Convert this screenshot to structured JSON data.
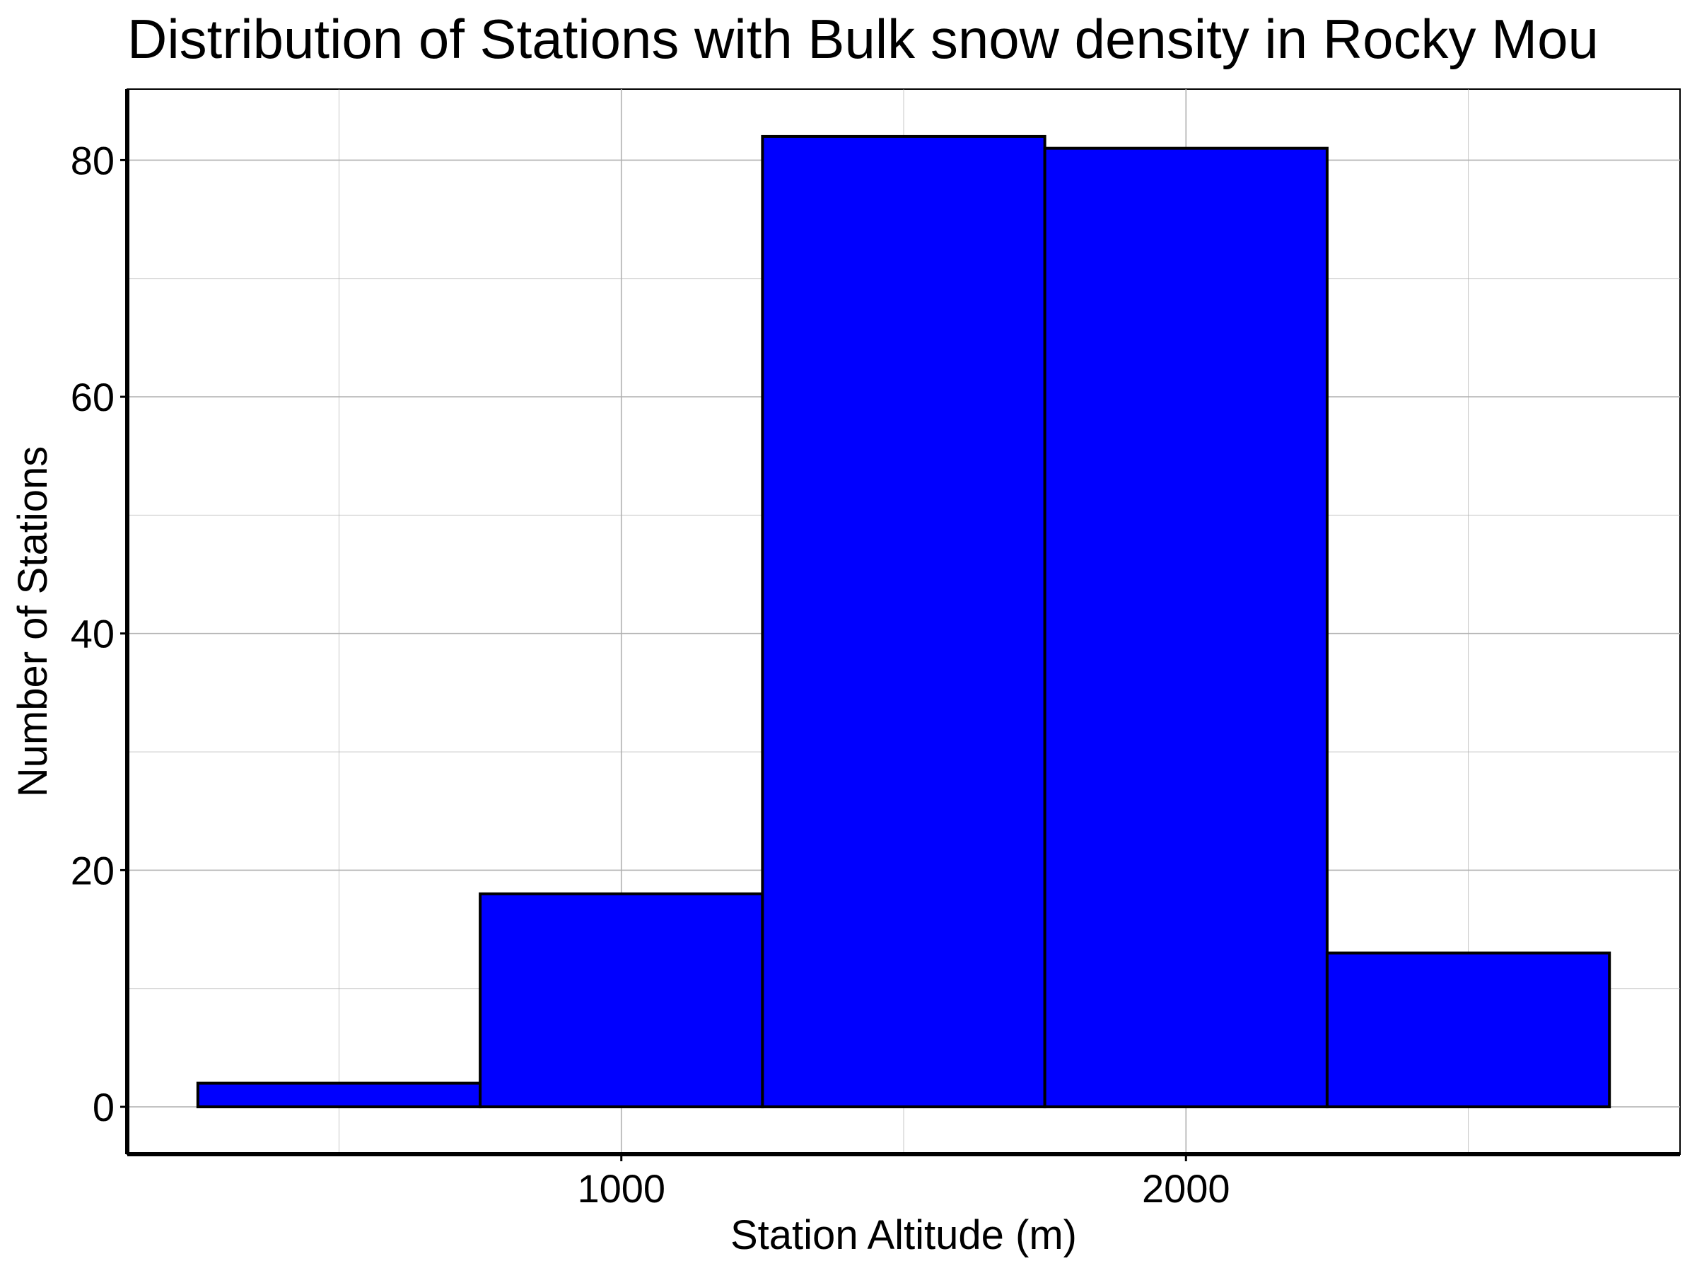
{
  "chart_data": {
    "type": "bar",
    "title": "Distribution of Stations with Bulk snow density in Rocky Mou",
    "xlabel": "Station Altitude (m)",
    "ylabel": "Number of Stations",
    "bins": [
      {
        "x0": 250,
        "x1": 750,
        "count": 2
      },
      {
        "x0": 750,
        "x1": 1250,
        "count": 18
      },
      {
        "x0": 1250,
        "x1": 1750,
        "count": 82
      },
      {
        "x0": 1750,
        "x1": 2250,
        "count": 81
      },
      {
        "x0": 2250,
        "x1": 2750,
        "count": 13
      }
    ],
    "xticks": [
      1000,
      2000
    ],
    "yticks": [
      0,
      20,
      40,
      60,
      80
    ],
    "xlim": [
      125,
      2875
    ],
    "ylim": [
      -4,
      86
    ],
    "grid": true,
    "colors": {
      "bar_fill": "#0000ff",
      "bar_edge": "#000000",
      "grid": "#b0b0b0"
    }
  }
}
